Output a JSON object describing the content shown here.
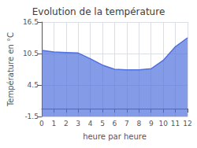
{
  "chart_data": {
    "type": "area",
    "title": "Evolution de la température",
    "xlabel": "heure par heure",
    "ylabel": "Température en °C",
    "x": [
      0,
      1,
      2,
      3,
      4,
      5,
      6,
      7,
      8,
      9,
      10,
      11,
      12
    ],
    "values": [
      11.1,
      10.8,
      10.7,
      10.6,
      9.5,
      8.3,
      7.5,
      7.4,
      7.4,
      7.6,
      9.2,
      11.8,
      13.5
    ],
    "xlim": [
      0,
      12
    ],
    "xticks": [
      0,
      1,
      2,
      3,
      4,
      5,
      6,
      7,
      8,
      9,
      10,
      11,
      12
    ],
    "ylim": [
      -1.5,
      16.5
    ],
    "yticks": [
      -1.5,
      4.5,
      10.5,
      16.5
    ],
    "grid": true
  }
}
